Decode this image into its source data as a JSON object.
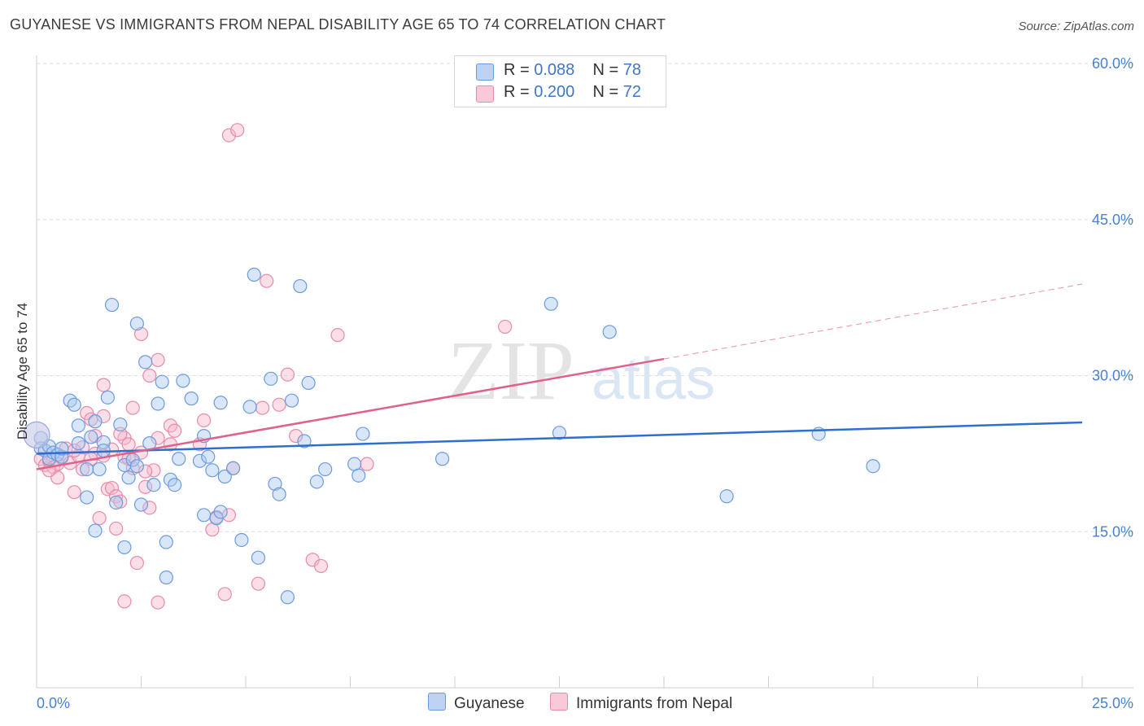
{
  "header": {
    "title": "GUYANESE VS IMMIGRANTS FROM NEPAL DISABILITY AGE 65 TO 74 CORRELATION CHART",
    "source": "Source: ZipAtlas.com"
  },
  "watermark": {
    "zip": "ZIP",
    "atlas": "atlas"
  },
  "legend": {
    "series1": {
      "r_label": "R =",
      "r_value": "0.088",
      "n_label": "N =",
      "n_value": "78"
    },
    "series2": {
      "r_label": "R =",
      "r_value": "0.200",
      "n_label": "N =",
      "n_value": "72"
    }
  },
  "bottom_legend": {
    "series1": "Guyanese",
    "series2": "Immigrants from Nepal"
  },
  "colors": {
    "series1_fill": "#a9c7f0",
    "series1_stroke": "#6a9be0",
    "series1_line": "#2f6fd0",
    "series2_fill": "#f5b8cc",
    "series2_stroke": "#e98aa8",
    "series2_line": "#e0618a",
    "tick_text": "#4a7fd1",
    "grid": "#dddddd"
  },
  "chart_data": {
    "type": "scatter",
    "title": "GUYANESE VS IMMIGRANTS FROM NEPAL DISABILITY AGE 65 TO 74 CORRELATION CHART",
    "xlabel": "",
    "ylabel": "Disability Age 65 to 74",
    "xlim": [
      0,
      25
    ],
    "ylim": [
      0,
      60
    ],
    "x_tick_labels": [
      "0.0%",
      "25.0%"
    ],
    "y_ticks": [
      15,
      30,
      45,
      60
    ],
    "y_tick_labels": [
      "15.0%",
      "30.0%",
      "45.0%",
      "60.0%"
    ],
    "grid": "horizontal dashed",
    "legend_position": "top-center",
    "series": [
      {
        "name": "Guyanese",
        "r": 0.088,
        "n": 78,
        "trend": {
          "x": [
            0,
            25
          ],
          "y": [
            22.5,
            25.5
          ]
        },
        "points": [
          [
            0.1,
            24.0
          ],
          [
            0.1,
            23.0
          ],
          [
            0.2,
            22.8
          ],
          [
            0.3,
            23.2
          ],
          [
            0.3,
            22.0
          ],
          [
            0.4,
            22.6
          ],
          [
            0.5,
            22.4
          ],
          [
            0.6,
            22.2
          ],
          [
            0.8,
            27.6
          ],
          [
            0.9,
            27.2
          ],
          [
            1.0,
            25.2
          ],
          [
            1.0,
            23.5
          ],
          [
            1.2,
            21.0
          ],
          [
            1.2,
            18.3
          ],
          [
            1.3,
            24.1
          ],
          [
            1.4,
            25.6
          ],
          [
            1.4,
            15.1
          ],
          [
            1.6,
            23.6
          ],
          [
            1.6,
            22.8
          ],
          [
            1.7,
            27.9
          ],
          [
            1.8,
            36.8
          ],
          [
            1.9,
            17.8
          ],
          [
            2.0,
            25.3
          ],
          [
            2.1,
            13.5
          ],
          [
            2.1,
            21.4
          ],
          [
            2.2,
            20.2
          ],
          [
            2.3,
            21.9
          ],
          [
            2.4,
            21.3
          ],
          [
            2.5,
            17.6
          ],
          [
            2.6,
            31.3
          ],
          [
            2.7,
            23.5
          ],
          [
            2.8,
            19.5
          ],
          [
            2.9,
            27.3
          ],
          [
            3.0,
            29.4
          ],
          [
            3.1,
            10.6
          ],
          [
            3.1,
            14.0
          ],
          [
            3.2,
            20.0
          ],
          [
            3.3,
            19.5
          ],
          [
            3.4,
            22.0
          ],
          [
            3.5,
            29.5
          ],
          [
            3.7,
            27.8
          ],
          [
            3.9,
            21.8
          ],
          [
            4.0,
            24.2
          ],
          [
            4.0,
            16.6
          ],
          [
            4.1,
            22.2
          ],
          [
            4.2,
            20.9
          ],
          [
            4.3,
            16.3
          ],
          [
            4.4,
            27.4
          ],
          [
            4.4,
            16.9
          ],
          [
            4.5,
            20.3
          ],
          [
            4.7,
            21.1
          ],
          [
            4.9,
            14.2
          ],
          [
            5.1,
            27.0
          ],
          [
            5.2,
            39.7
          ],
          [
            5.3,
            12.5
          ],
          [
            5.6,
            29.7
          ],
          [
            5.7,
            19.6
          ],
          [
            5.8,
            18.6
          ],
          [
            6.0,
            8.7
          ],
          [
            6.1,
            27.6
          ],
          [
            6.3,
            38.6
          ],
          [
            6.4,
            23.7
          ],
          [
            6.5,
            29.3
          ],
          [
            6.7,
            19.8
          ],
          [
            6.9,
            21.0
          ],
          [
            7.6,
            21.5
          ],
          [
            7.7,
            20.4
          ],
          [
            7.8,
            24.4
          ],
          [
            9.7,
            22.0
          ],
          [
            12.3,
            36.9
          ],
          [
            12.5,
            24.5
          ],
          [
            13.7,
            34.2
          ],
          [
            16.5,
            18.4
          ],
          [
            18.7,
            24.4
          ],
          [
            20.0,
            21.3
          ],
          [
            2.4,
            35.0
          ],
          [
            0.6,
            23.0
          ],
          [
            1.5,
            21.0
          ]
        ]
      },
      {
        "name": "Immigrants from Nepal",
        "r": 0.2,
        "n": 72,
        "trend": {
          "x": [
            0,
            15
          ],
          "y": [
            21.0,
            31.6
          ]
        },
        "trend_dashed": {
          "x": [
            15,
            25
          ],
          "y": [
            31.6,
            38.8
          ]
        },
        "points": [
          [
            0.1,
            22.0
          ],
          [
            0.2,
            21.4
          ],
          [
            0.3,
            21.8
          ],
          [
            0.4,
            21.2
          ],
          [
            0.5,
            20.2
          ],
          [
            0.6,
            22.1
          ],
          [
            0.7,
            23.0
          ],
          [
            0.8,
            21.6
          ],
          [
            0.9,
            18.8
          ],
          [
            1.0,
            22.3
          ],
          [
            1.1,
            23.1
          ],
          [
            1.1,
            21.0
          ],
          [
            1.2,
            26.4
          ],
          [
            1.3,
            25.8
          ],
          [
            1.4,
            24.2
          ],
          [
            1.4,
            22.5
          ],
          [
            1.5,
            16.3
          ],
          [
            1.6,
            26.1
          ],
          [
            1.6,
            22.3
          ],
          [
            1.6,
            29.1
          ],
          [
            1.7,
            19.1
          ],
          [
            1.8,
            19.2
          ],
          [
            1.9,
            15.3
          ],
          [
            1.9,
            18.4
          ],
          [
            2.0,
            17.9
          ],
          [
            2.1,
            24.0
          ],
          [
            2.1,
            22.2
          ],
          [
            2.1,
            8.3
          ],
          [
            2.2,
            23.4
          ],
          [
            2.3,
            21.1
          ],
          [
            2.3,
            26.9
          ],
          [
            2.4,
            12.0
          ],
          [
            2.5,
            22.6
          ],
          [
            2.5,
            34.0
          ],
          [
            2.6,
            19.3
          ],
          [
            2.7,
            30.0
          ],
          [
            2.7,
            17.3
          ],
          [
            2.8,
            20.9
          ],
          [
            2.9,
            31.5
          ],
          [
            2.9,
            24.0
          ],
          [
            3.2,
            25.2
          ],
          [
            3.2,
            23.4
          ],
          [
            3.3,
            24.7
          ],
          [
            3.9,
            23.4
          ],
          [
            4.0,
            25.7
          ],
          [
            4.2,
            15.2
          ],
          [
            4.3,
            16.4
          ],
          [
            4.5,
            9.0
          ],
          [
            4.6,
            16.6
          ],
          [
            4.7,
            21.1
          ],
          [
            5.3,
            10.0
          ],
          [
            5.4,
            26.9
          ],
          [
            5.5,
            39.1
          ],
          [
            5.8,
            27.2
          ],
          [
            6.0,
            30.1
          ],
          [
            6.2,
            24.2
          ],
          [
            6.6,
            12.3
          ],
          [
            6.8,
            11.7
          ],
          [
            7.2,
            33.9
          ],
          [
            7.9,
            21.5
          ],
          [
            11.2,
            34.7
          ],
          [
            4.6,
            53.1
          ],
          [
            4.8,
            53.6
          ],
          [
            0.5,
            21.5
          ],
          [
            0.9,
            22.8
          ],
          [
            1.3,
            22.0
          ],
          [
            2.0,
            24.4
          ],
          [
            2.2,
            22.0
          ],
          [
            2.6,
            20.8
          ],
          [
            1.8,
            22.9
          ],
          [
            0.3,
            20.9
          ],
          [
            2.9,
            8.2
          ]
        ]
      }
    ]
  }
}
